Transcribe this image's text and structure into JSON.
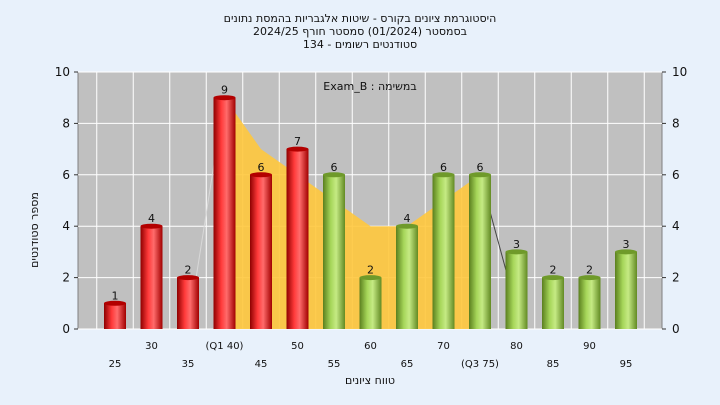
{
  "chart_data": {
    "type": "bar",
    "title_lines": [
      "היסטוגרמת ציונים בקורס - שיטות אלגבריות בהמסת נתונים",
      "בסמסטר   (01/2024)  סמסטר חורף  2024/25",
      "סטודנטים רשומים - 134"
    ],
    "annotation": "Exam_B : במשימה",
    "xlabel": "טווח ציונים",
    "ylabel": "מספר סטודנטים",
    "ylim": [
      0,
      10
    ],
    "yticks": [
      0,
      2,
      4,
      6,
      8,
      10
    ],
    "grid": true,
    "categories": [
      "25",
      "30",
      "35",
      "(Q1 40)",
      "45",
      "50",
      "55",
      "60",
      "65",
      "70",
      "(Q3 75)",
      "80",
      "85",
      "90",
      "95"
    ],
    "values": [
      1,
      4,
      2,
      9,
      6,
      7,
      6,
      2,
      4,
      6,
      6,
      3,
      2,
      2,
      3
    ],
    "value_labels": [
      "1",
      "4",
      "2",
      "9",
      "6",
      "7",
      "6",
      "2",
      "4",
      "6",
      "6",
      "3",
      "2",
      "2",
      "3"
    ],
    "bar_colors": [
      "red",
      "red",
      "red",
      "red",
      "red",
      "red",
      "green",
      "green",
      "green",
      "green",
      "green",
      "green",
      "green",
      "green",
      "green"
    ],
    "interquartile_band": {
      "from_category": "(Q1 40)",
      "to_category": "(Q3 75)",
      "upper": [
        9,
        7,
        6,
        5,
        4,
        4,
        5,
        6
      ]
    },
    "colors": {
      "red": "#e02020",
      "green": "#8cbf3f",
      "band": "#ffc83d",
      "plot_bg": "#c0c0c0",
      "page_bg": "#e8f1fb"
    }
  }
}
